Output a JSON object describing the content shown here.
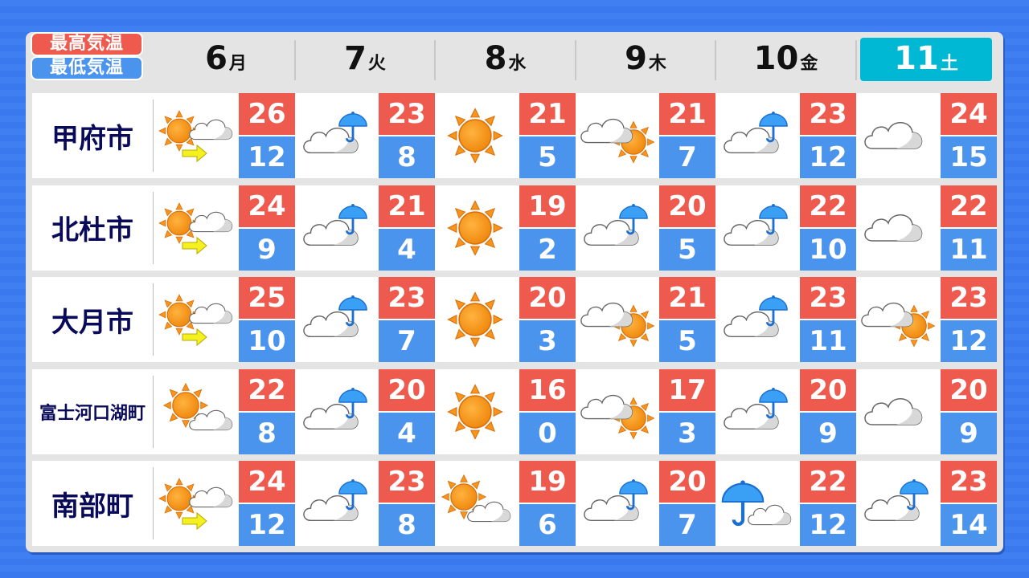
{
  "legend": {
    "high": "最高気温",
    "low": "最低気温"
  },
  "colors": {
    "high": "#ee5a4e",
    "low": "#4a94ee",
    "today": "#00b8d4",
    "city_text": "#0a0a5a"
  },
  "days": [
    {
      "date": "6",
      "weekday": "月"
    },
    {
      "date": "7",
      "weekday": "火"
    },
    {
      "date": "8",
      "weekday": "水"
    },
    {
      "date": "9",
      "weekday": "木"
    },
    {
      "date": "10",
      "weekday": "金"
    },
    {
      "date": "11",
      "weekday": "土",
      "highlighted": true
    }
  ],
  "rows": [
    {
      "city": "甲府市",
      "forecast": [
        {
          "icon": "sunny-then-cloudy",
          "high": "26",
          "low": "12"
        },
        {
          "icon": "cloudy-occasional-rain",
          "high": "23",
          "low": "8"
        },
        {
          "icon": "sunny",
          "high": "21",
          "low": "5"
        },
        {
          "icon": "cloudy-occasional-sunny",
          "high": "21",
          "low": "7"
        },
        {
          "icon": "cloudy-occasional-rain",
          "high": "23",
          "low": "12"
        },
        {
          "icon": "cloudy",
          "high": "24",
          "low": "15"
        }
      ]
    },
    {
      "city": "北杜市",
      "forecast": [
        {
          "icon": "sunny-then-cloudy",
          "high": "24",
          "low": "9"
        },
        {
          "icon": "cloudy-occasional-rain",
          "high": "21",
          "low": "4"
        },
        {
          "icon": "sunny",
          "high": "19",
          "low": "2"
        },
        {
          "icon": "cloudy-occasional-rain",
          "high": "20",
          "low": "5"
        },
        {
          "icon": "cloudy-occasional-rain",
          "high": "22",
          "low": "10"
        },
        {
          "icon": "cloudy",
          "high": "22",
          "low": "11"
        }
      ]
    },
    {
      "city": "大月市",
      "forecast": [
        {
          "icon": "sunny-then-cloudy",
          "high": "25",
          "low": "10"
        },
        {
          "icon": "cloudy-occasional-rain",
          "high": "23",
          "low": "7"
        },
        {
          "icon": "sunny",
          "high": "20",
          "low": "3"
        },
        {
          "icon": "cloudy-occasional-sunny",
          "high": "21",
          "low": "5"
        },
        {
          "icon": "cloudy-occasional-rain",
          "high": "23",
          "low": "11"
        },
        {
          "icon": "cloudy-occasional-sunny",
          "high": "23",
          "low": "12"
        }
      ]
    },
    {
      "city": "富士河口湖町",
      "forecast": [
        {
          "icon": "sunny-occasional-cloudy",
          "high": "22",
          "low": "8"
        },
        {
          "icon": "cloudy-occasional-rain",
          "high": "20",
          "low": "4"
        },
        {
          "icon": "sunny",
          "high": "16",
          "low": "0"
        },
        {
          "icon": "cloudy-occasional-sunny",
          "high": "17",
          "low": "3"
        },
        {
          "icon": "cloudy-occasional-rain",
          "high": "20",
          "low": "9"
        },
        {
          "icon": "cloudy",
          "high": "20",
          "low": "9"
        }
      ]
    },
    {
      "city": "南部町",
      "forecast": [
        {
          "icon": "sunny-then-cloudy",
          "high": "24",
          "low": "12"
        },
        {
          "icon": "cloudy-occasional-rain",
          "high": "23",
          "low": "8"
        },
        {
          "icon": "sunny-occasional-cloudy",
          "high": "19",
          "low": "6"
        },
        {
          "icon": "cloudy-occasional-rain",
          "high": "20",
          "low": "7"
        },
        {
          "icon": "rain-occasional-cloudy",
          "high": "22",
          "low": "12"
        },
        {
          "icon": "cloudy-occasional-rain",
          "high": "23",
          "low": "14"
        }
      ]
    }
  ]
}
